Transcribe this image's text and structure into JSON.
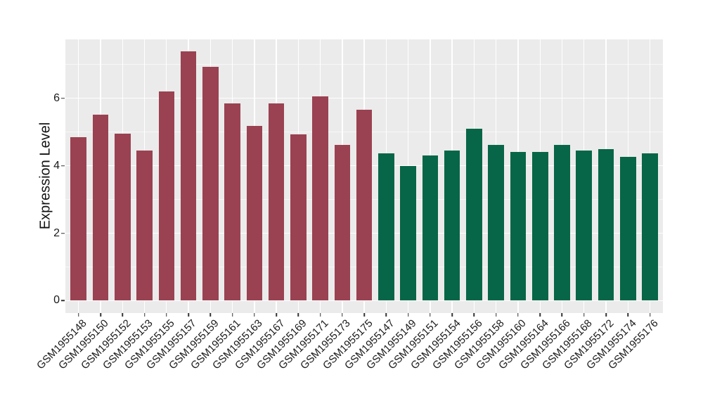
{
  "chart": {
    "panel_bg": "#EBEBEB",
    "grid_major_color": "#FFFFFF",
    "grid_minor_color": "rgba(255,255,255,0.6)",
    "tick_color": "#333333",
    "text_color": "#1a1a1a"
  },
  "chart_data": {
    "type": "bar",
    "title": "",
    "xlabel": "",
    "ylabel": "Expression Level",
    "yticks": [
      0,
      2,
      4,
      6
    ],
    "yminor": [
      1,
      3,
      5,
      7
    ],
    "ylim": [
      -0.37,
      7.75
    ],
    "grid": "on",
    "legend": "none",
    "groups": [
      {
        "id": "group1",
        "color": "#9A4252"
      },
      {
        "id": "group2",
        "color": "#076647"
      }
    ],
    "bars": [
      {
        "label": "GSM1955148",
        "value": 4.85,
        "group": "group1"
      },
      {
        "label": "GSM1955150",
        "value": 5.52,
        "group": "group1"
      },
      {
        "label": "GSM1955152",
        "value": 4.96,
        "group": "group1"
      },
      {
        "label": "GSM1955153",
        "value": 4.45,
        "group": "group1"
      },
      {
        "label": "GSM1955155",
        "value": 6.2,
        "group": "group1"
      },
      {
        "label": "GSM1955157",
        "value": 7.38,
        "group": "group1"
      },
      {
        "label": "GSM1955159",
        "value": 6.93,
        "group": "group1"
      },
      {
        "label": "GSM1955161",
        "value": 5.85,
        "group": "group1"
      },
      {
        "label": "GSM1955163",
        "value": 5.18,
        "group": "group1"
      },
      {
        "label": "GSM1955167",
        "value": 5.85,
        "group": "group1"
      },
      {
        "label": "GSM1955169",
        "value": 4.92,
        "group": "group1"
      },
      {
        "label": "GSM1955171",
        "value": 6.05,
        "group": "group1"
      },
      {
        "label": "GSM1955173",
        "value": 4.62,
        "group": "group1"
      },
      {
        "label": "GSM1955175",
        "value": 5.67,
        "group": "group1"
      },
      {
        "label": "GSM1955147",
        "value": 4.37,
        "group": "group2"
      },
      {
        "label": "GSM1955149",
        "value": 4.0,
        "group": "group2"
      },
      {
        "label": "GSM1955151",
        "value": 4.3,
        "group": "group2"
      },
      {
        "label": "GSM1955154",
        "value": 4.46,
        "group": "group2"
      },
      {
        "label": "GSM1955156",
        "value": 5.09,
        "group": "group2"
      },
      {
        "label": "GSM1955158",
        "value": 4.61,
        "group": "group2"
      },
      {
        "label": "GSM1955160",
        "value": 4.41,
        "group": "group2"
      },
      {
        "label": "GSM1955164",
        "value": 4.41,
        "group": "group2"
      },
      {
        "label": "GSM1955166",
        "value": 4.62,
        "group": "group2"
      },
      {
        "label": "GSM1955168",
        "value": 4.45,
        "group": "group2"
      },
      {
        "label": "GSM1955172",
        "value": 4.5,
        "group": "group2"
      },
      {
        "label": "GSM1955174",
        "value": 4.26,
        "group": "group2"
      },
      {
        "label": "GSM1955176",
        "value": 4.36,
        "group": "group2"
      }
    ]
  }
}
